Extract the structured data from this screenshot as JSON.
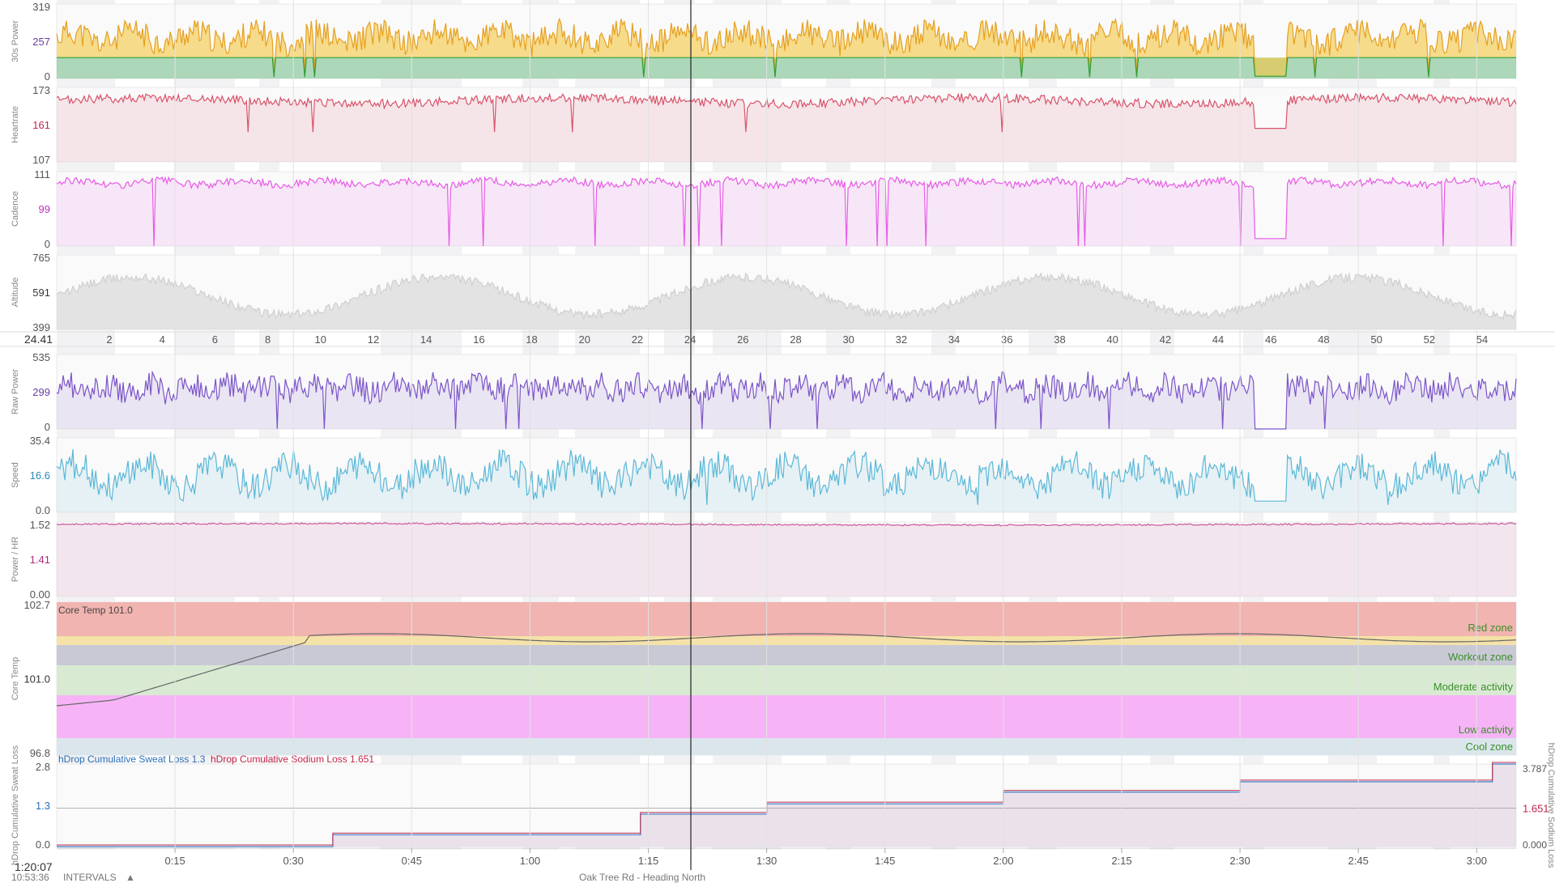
{
  "chart_data": {
    "type": "line",
    "x_ticks": [
      "0:15",
      "0:30",
      "0:45",
      "1:00",
      "1:15",
      "1:30",
      "1:45",
      "2:00",
      "2:15",
      "2:30",
      "2:45",
      "3:00"
    ],
    "x_range": [
      "0:00",
      "3:05"
    ],
    "cursor_time": "1:20:07",
    "lap_value": "24.41",
    "lap_markers": [
      "2",
      "4",
      "6",
      "8",
      "10",
      "12",
      "14",
      "16",
      "18",
      "20",
      "22",
      "24",
      "26",
      "28",
      "30",
      "32",
      "34",
      "36",
      "38",
      "40",
      "42",
      "44",
      "46",
      "48",
      "50",
      "52",
      "54"
    ],
    "panels": [
      {
        "key": "p30",
        "ylabel": "30s Power",
        "max": "319",
        "mid": "257",
        "min": "0",
        "color": "#2f9e3a",
        "mid_color": "#6a3fa0",
        "zones": [
          {
            "color": "#f3c640"
          },
          {
            "color": "#4db06a"
          }
        ],
        "ylim": [
          0,
          319
        ]
      },
      {
        "key": "hr",
        "ylabel": "Heartrate",
        "max": "173",
        "mid": "161",
        "min": "107",
        "color": "#d9536b",
        "mid_color": "#c0254a",
        "ylim": [
          107,
          173
        ]
      },
      {
        "key": "cad",
        "ylabel": "Cadence",
        "max": "111",
        "mid": "99",
        "min": "0",
        "color": "#e85ae8",
        "mid_color": "#c22fc2",
        "ylim": [
          0,
          111
        ]
      },
      {
        "key": "alt",
        "ylabel": "Altitude",
        "max": "765",
        "mid": "591",
        "min": "399",
        "color": "#cfcfcf",
        "mid_color": "#333333",
        "ylim": [
          399,
          765
        ]
      },
      {
        "key": "raw",
        "ylabel": "Raw Power",
        "max": "535",
        "mid": "299",
        "min": "0",
        "color": "#7b55c9",
        "mid_color": "#6a3fa0",
        "ylim": [
          0,
          535
        ]
      },
      {
        "key": "spd",
        "ylabel": "Speed",
        "max": "35.4",
        "mid": "16.6",
        "min": "0.0",
        "color": "#5bb8d8",
        "mid_color": "#2a89b8",
        "ylim": [
          0,
          35.4
        ]
      },
      {
        "key": "phr",
        "ylabel": "Power / HR",
        "max": "1.52",
        "mid": "1.41",
        "min": "0.00",
        "color": "#c8559c",
        "mid_color": "#b0287c",
        "ylim": [
          0,
          1.52
        ]
      },
      {
        "key": "core",
        "ylabel": "Core Temp",
        "max": "102.7",
        "mid": "101.0",
        "min": "96.8",
        "color": "#777777",
        "mid_color": "#333333",
        "ylim": [
          96.8,
          102.7
        ]
      },
      {
        "key": "sweat",
        "ylabel": "hDrop Cumulative Sweat Loss",
        "max": "2.8",
        "mid": "1.3",
        "min": "0.0",
        "right_ylabel": "hDrop Cumulative Sodium Loss",
        "right_max": "3.787",
        "right_mid": "1.651",
        "right_min": "0.000",
        "color": "#3d7fc4",
        "mid_color": "#2a6fb8",
        "ylim": [
          0,
          2.8
        ]
      }
    ],
    "core_temp_legend": "Core Temp 101.0",
    "core_zones": [
      {
        "name": "Red zone",
        "color": "#f1b4b0"
      },
      {
        "name": "",
        "color": "#f5e2a8"
      },
      {
        "name": "Workout zone",
        "color": "#c9c9d6"
      },
      {
        "name": "Moderate activity",
        "color": "#d8ead2"
      },
      {
        "name": "Low activity",
        "color": "#f6b4f6"
      },
      {
        "name": "Cool zone",
        "color": "#dbe6ec"
      }
    ],
    "sweat_legend": "hDrop Cumulative Sweat Loss 1.3",
    "sodium_legend": "hDrop Cumulative Sodium Loss 1.651",
    "sweat_steps": [
      {
        "t": "0:00",
        "v": 0.0
      },
      {
        "t": "0:35",
        "v": 0.4
      },
      {
        "t": "1:14",
        "v": 1.1
      },
      {
        "t": "1:30",
        "v": 1.45
      },
      {
        "t": "2:00",
        "v": 1.85
      },
      {
        "t": "2:30",
        "v": 2.2
      },
      {
        "t": "3:02",
        "v": 2.8
      }
    ]
  },
  "footer": {
    "time": "10:53:36",
    "intervals_label": "INTERVALS",
    "caret": "▲",
    "location": "Oak Tree Rd - Heading North"
  }
}
